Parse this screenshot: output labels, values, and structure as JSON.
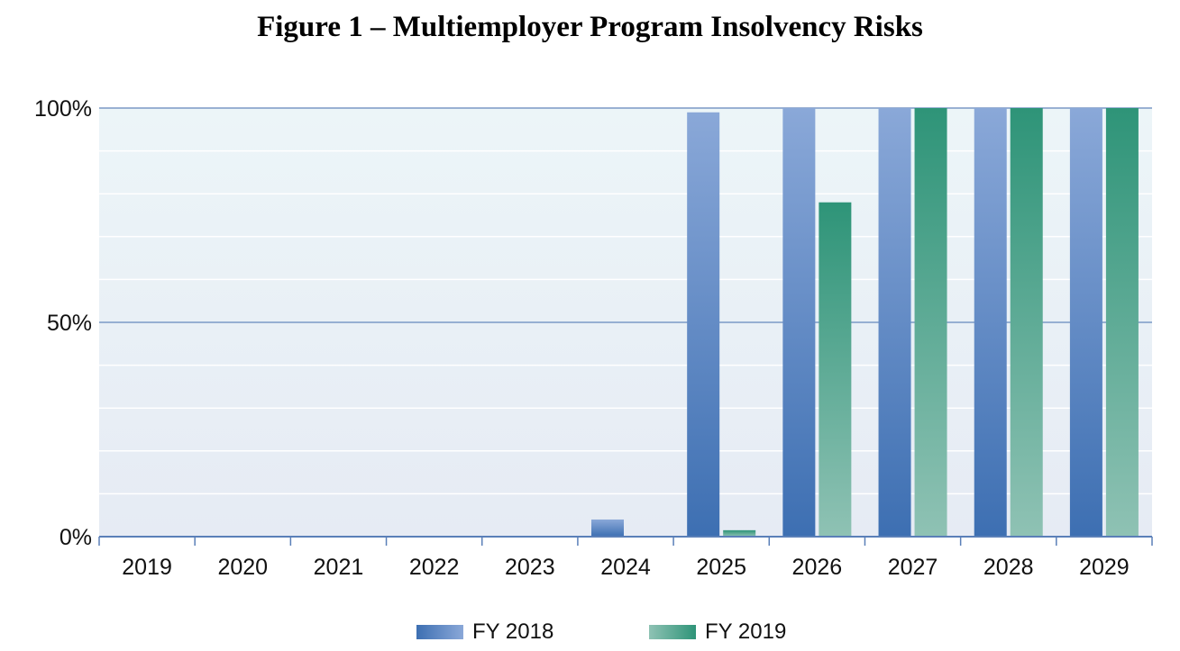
{
  "chart_data": {
    "type": "bar",
    "title": "Figure 1 – Multiemployer Program Insolvency Risks",
    "categories": [
      "2019",
      "2020",
      "2021",
      "2022",
      "2023",
      "2024",
      "2025",
      "2026",
      "2027",
      "2028",
      "2029"
    ],
    "series": [
      {
        "name": "FY 2018",
        "color": "#4a76b8",
        "values": [
          0,
          0,
          0,
          0,
          0,
          4,
          99,
          100,
          100,
          100,
          100
        ]
      },
      {
        "name": "FY 2019",
        "color": "#2e9478",
        "values": [
          0,
          0,
          0,
          0,
          0,
          0,
          1.5,
          78,
          100,
          100,
          100
        ]
      }
    ],
    "ylim": [
      0,
      100
    ],
    "yticks": [
      "0%",
      "50%",
      "100%"
    ],
    "ytick_values": [
      0,
      50,
      100
    ],
    "xlabel": "",
    "ylabel": "",
    "grid": true,
    "legend_position": "bottom"
  }
}
